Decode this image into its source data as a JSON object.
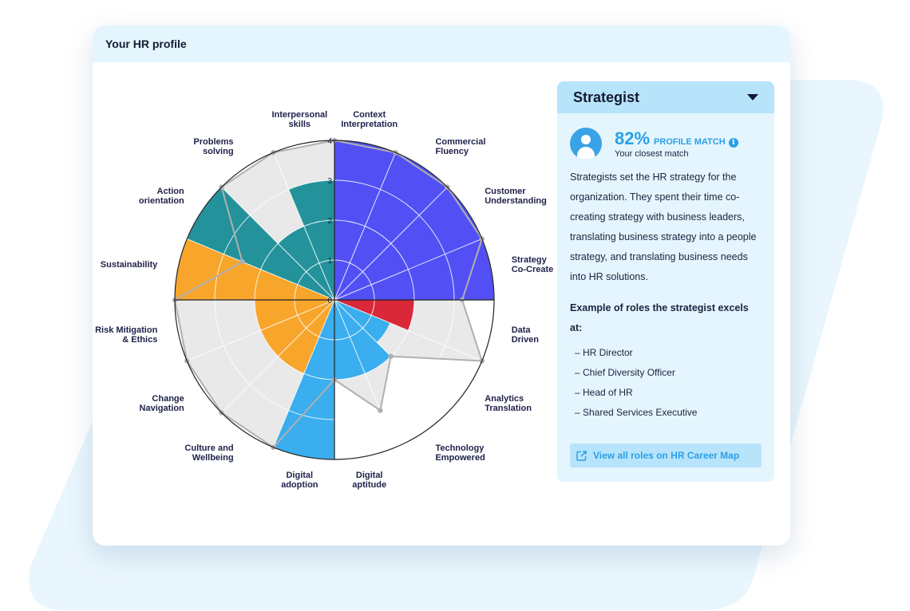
{
  "card": {
    "title": "Your HR profile"
  },
  "profile": {
    "role": "Strategist",
    "match_percent": "82%",
    "match_label": "PROFILE MATCH",
    "match_sub": "Your closest match",
    "description": "Strategists set the HR strategy for the organization. They spent their time co-creating strategy with business leaders, translating business strategy into a people strategy, and translating business needs into HR solutions.",
    "roles_title": "Example of roles the strategist excels at:",
    "roles": [
      "– HR Director",
      "– Chief Diversity Officer",
      "– Head of HR",
      "– Shared Services Executive"
    ],
    "link_label": "View all roles on HR Career Map",
    "icons": {
      "avatar": "user-avatar-icon",
      "info": "info-icon",
      "dropdown": "caret-down-icon",
      "link": "external-link-icon"
    },
    "colors": {
      "accent": "#2aa0e6",
      "panel": "#e4f5fd",
      "panel_head": "#b8e4fb"
    }
  },
  "chart_data": {
    "type": "polar-area",
    "scale": {
      "min": 0,
      "max": 4,
      "ticks": [
        "0",
        "1",
        "2",
        "3",
        "4"
      ]
    },
    "categories": [
      {
        "label": "Context\nInterpretation",
        "value": 4.0,
        "profile": 4.0,
        "color": "#5250f5"
      },
      {
        "label": "Commercial\nFluency",
        "value": 4.0,
        "profile": 4.0,
        "color": "#5250f5"
      },
      {
        "label": "Customer\nUnderstanding",
        "value": 4.0,
        "profile": 4.0,
        "color": "#5250f5"
      },
      {
        "label": "Strategy\nCo-Create",
        "value": 4.0,
        "profile": 4.0,
        "color": "#5250f5"
      },
      {
        "label": "Data\nDriven",
        "value": 2.0,
        "profile": 3.2,
        "color": "#d9283a"
      },
      {
        "label": "Analytics\nTranslation",
        "value": 1.5,
        "profile": 4.0,
        "color": "#3aaeee"
      },
      {
        "label": "Technology\nEmpowered",
        "value": 2.0,
        "profile": 2.0,
        "color": "#3aaeee"
      },
      {
        "label": "Digital\naptitude",
        "value": 2.0,
        "profile": 3.0,
        "color": "#3aaeee"
      },
      {
        "label": "Digital\nadoption",
        "value": 4.0,
        "profile": 2.0,
        "color": "#3aaeee"
      },
      {
        "label": "Culture and\nWellbeing",
        "value": 2.0,
        "profile": 4.0,
        "color": "#f8a52b"
      },
      {
        "label": "Change\nNavigation",
        "value": 2.0,
        "profile": 4.0,
        "color": "#f8a52b"
      },
      {
        "label": "Risk Mitigation\n& Ethics",
        "value": 2.0,
        "profile": 4.0,
        "color": "#f8a52b"
      },
      {
        "label": "Sustainability",
        "value": 4.0,
        "profile": 4.0,
        "color": "#f8a52b"
      },
      {
        "label": "Action\norientation",
        "value": 4.0,
        "profile": 2.5,
        "color": "#23929b"
      },
      {
        "label": "Problems\nsolving",
        "value": 2.0,
        "profile": 4.0,
        "color": "#23929b"
      },
      {
        "label": "Interpersonal\nskills",
        "value": 3.0,
        "profile": 4.0,
        "color": "#23929b"
      }
    ],
    "colors": {
      "profile_fill": "#e9e9ea",
      "profile_line": "#b0b0b0",
      "grid": "#ffffff",
      "outline": "#222222"
    }
  }
}
